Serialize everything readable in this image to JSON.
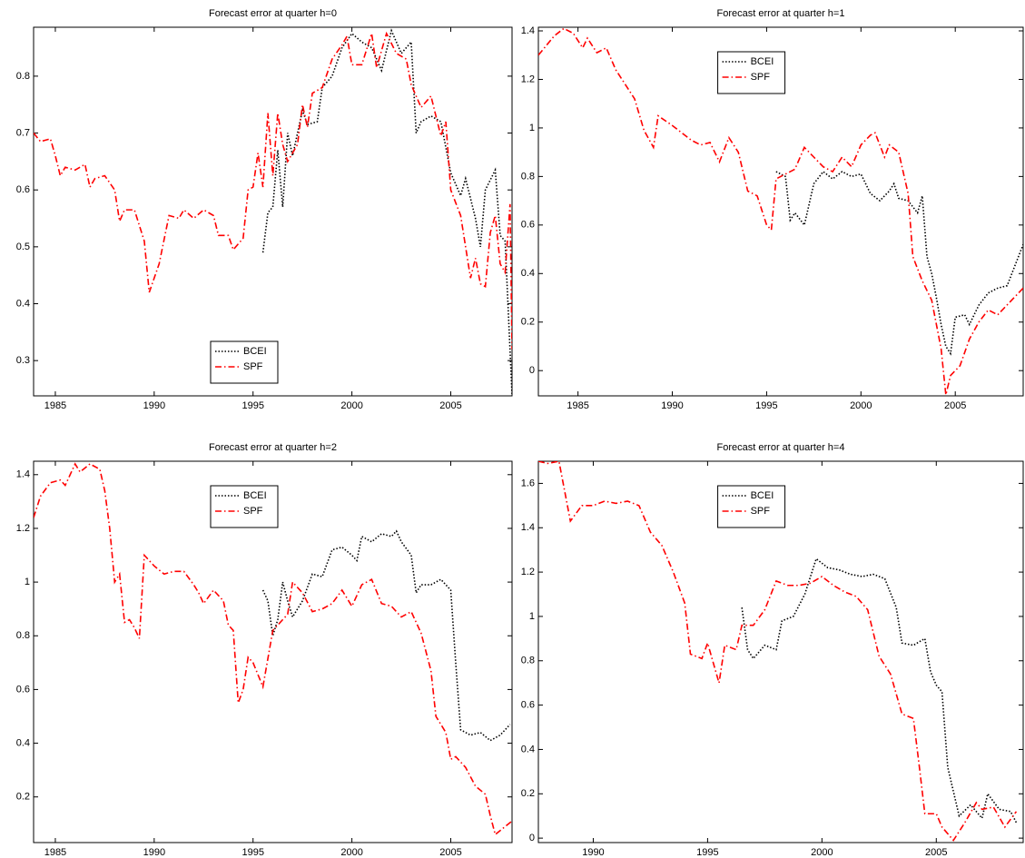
{
  "chart_data": [
    {
      "type": "line",
      "title": "Forecast error at quarter h=0",
      "legend": "lower center",
      "xlim": [
        1983.9,
        2008.1
      ],
      "xticks": [
        1985,
        1990,
        1995,
        2000,
        2005
      ],
      "ylim": [
        0.238,
        0.886
      ],
      "yticks": [
        0.3,
        0.4,
        0.5,
        0.6,
        0.7,
        0.8
      ],
      "series": [
        {
          "name": "BCEI",
          "color": "#000000",
          "linestyle": "dotted",
          "x": [
            1995.5,
            1995.75,
            1996,
            1996.25,
            1996.5,
            1996.75,
            1997,
            1997.5,
            1997.75,
            1998.25,
            1998.5,
            1999,
            1999.5,
            2000,
            2000.5,
            2001,
            2001.5,
            2002,
            2002.5,
            2003,
            2003.25,
            2003.5,
            2004,
            2004.5,
            2005,
            2005.5,
            2005.75,
            2006.25,
            2006.5,
            2006.75,
            2007.25,
            2007.5,
            2007.75,
            2008.1
          ],
          "values": [
            0.49,
            0.56,
            0.57,
            0.67,
            0.57,
            0.7,
            0.66,
            0.74,
            0.715,
            0.72,
            0.78,
            0.8,
            0.85,
            0.875,
            0.86,
            0.85,
            0.81,
            0.88,
            0.84,
            0.86,
            0.7,
            0.72,
            0.73,
            0.72,
            0.63,
            0.59,
            0.62,
            0.55,
            0.5,
            0.6,
            0.635,
            0.52,
            0.51,
            0.24
          ]
        },
        {
          "name": "SPF",
          "color": "#ff0000",
          "linestyle": "dashdot",
          "x": [
            1983.9,
            1984.25,
            1984.75,
            1985.0,
            1985.25,
            1985.5,
            1986,
            1986.5,
            1986.75,
            1987,
            1987.5,
            1988,
            1988.25,
            1988.5,
            1989,
            1989.5,
            1989.75,
            1990.25,
            1990.75,
            1991.25,
            1991.5,
            1992,
            1992.5,
            1993,
            1993.25,
            1993.75,
            1994,
            1994.5,
            1994.75,
            1995,
            1995.25,
            1995.5,
            1995.75,
            1996,
            1996.25,
            1996.5,
            1996.75,
            1997.25,
            1997.5,
            1997.75,
            1998,
            1998.5,
            1999,
            1999.5,
            1999.75,
            2000,
            2000.5,
            2001,
            2001.25,
            2001.75,
            2002.25,
            2002.75,
            2003,
            2003.5,
            2004,
            2004.5,
            2004.75,
            2005,
            2005.5,
            2006,
            2006.25,
            2006.5,
            2006.75,
            2007,
            2007.25,
            2007.5,
            2007.75,
            2008,
            2008.1
          ],
          "values": [
            0.7,
            0.685,
            0.69,
            0.66,
            0.625,
            0.64,
            0.635,
            0.645,
            0.605,
            0.62,
            0.625,
            0.6,
            0.545,
            0.565,
            0.565,
            0.51,
            0.42,
            0.47,
            0.555,
            0.55,
            0.565,
            0.55,
            0.565,
            0.555,
            0.52,
            0.52,
            0.495,
            0.515,
            0.6,
            0.605,
            0.665,
            0.605,
            0.735,
            0.625,
            0.735,
            0.68,
            0.65,
            0.68,
            0.75,
            0.71,
            0.77,
            0.78,
            0.83,
            0.855,
            0.87,
            0.82,
            0.82,
            0.875,
            0.815,
            0.875,
            0.84,
            0.83,
            0.785,
            0.745,
            0.765,
            0.695,
            0.72,
            0.6,
            0.555,
            0.445,
            0.48,
            0.435,
            0.43,
            0.525,
            0.555,
            0.47,
            0.455,
            0.575,
            0.32
          ]
        }
      ]
    },
    {
      "type": "line",
      "title": "Forecast error at quarter h=1",
      "legend": "upper center",
      "xlim": [
        1982.9,
        2008.6
      ],
      "xticks": [
        1985,
        1990,
        1995,
        2000,
        2005
      ],
      "ylim": [
        -0.104,
        1.415
      ],
      "yticks": [
        0,
        0.2,
        0.4,
        0.6,
        0.8,
        1,
        1.2,
        1.4
      ],
      "series": [
        {
          "name": "BCEI",
          "color": "#000000",
          "linestyle": "dotted",
          "x": [
            1995.5,
            1996,
            1996.25,
            1996.5,
            1997,
            1997.5,
            1998,
            1998.5,
            1999,
            1999.5,
            2000,
            2000.5,
            2001,
            2001.5,
            2001.75,
            2002,
            2002.5,
            2003,
            2003.25,
            2003.5,
            2003.75,
            2004,
            2004.25,
            2004.5,
            2004.75,
            2005,
            2005.5,
            2005.75,
            2006.25,
            2006.75,
            2007.25,
            2007.75,
            2008.6
          ],
          "values": [
            0.82,
            0.8,
            0.62,
            0.65,
            0.6,
            0.77,
            0.82,
            0.79,
            0.82,
            0.8,
            0.81,
            0.73,
            0.7,
            0.74,
            0.77,
            0.71,
            0.7,
            0.65,
            0.72,
            0.47,
            0.4,
            0.3,
            0.19,
            0.1,
            0.07,
            0.22,
            0.23,
            0.19,
            0.27,
            0.32,
            0.34,
            0.35,
            0.52
          ]
        },
        {
          "name": "SPF",
          "color": "#ff0000",
          "linestyle": "dashdot",
          "x": [
            1982.9,
            1983.75,
            1984.25,
            1984.75,
            1985.25,
            1985.5,
            1986,
            1986.5,
            1987,
            1987.5,
            1988,
            1988.5,
            1989,
            1989.25,
            1990,
            1990.5,
            1991,
            1991.5,
            1992,
            1992.5,
            1993,
            1993.5,
            1994,
            1994.5,
            1995,
            1995.25,
            1995.5,
            1996,
            1996.5,
            1997,
            1997.5,
            1998,
            1998.5,
            1999,
            1999.5,
            2000,
            2000.5,
            2000.75,
            2001.25,
            2001.5,
            2002,
            2002.5,
            2002.75,
            2003.25,
            2003.75,
            2004.25,
            2004.5,
            2004.75,
            2005.25,
            2005.75,
            2006.25,
            2006.75,
            2007.25,
            2008.6
          ],
          "values": [
            1.3,
            1.38,
            1.41,
            1.39,
            1.33,
            1.37,
            1.31,
            1.33,
            1.24,
            1.18,
            1.12,
            0.99,
            0.92,
            1.05,
            1.01,
            0.98,
            0.95,
            0.93,
            0.94,
            0.86,
            0.96,
            0.9,
            0.74,
            0.72,
            0.6,
            0.58,
            0.79,
            0.81,
            0.83,
            0.92,
            0.88,
            0.84,
            0.82,
            0.88,
            0.84,
            0.93,
            0.97,
            0.98,
            0.88,
            0.93,
            0.9,
            0.73,
            0.47,
            0.37,
            0.29,
            0.09,
            -0.1,
            -0.02,
            0.02,
            0.13,
            0.2,
            0.25,
            0.23,
            0.34
          ]
        }
      ]
    },
    {
      "type": "line",
      "title": "Forecast error at quarter h=2",
      "legend": "upper center",
      "xlim": [
        1983.9,
        2008.1
      ],
      "xticks": [
        1985,
        1990,
        1995,
        2000,
        2005
      ],
      "ylim": [
        0.03,
        1.45
      ],
      "yticks": [
        0.2,
        0.4,
        0.6,
        0.8,
        1,
        1.2,
        1.4
      ],
      "series": [
        {
          "name": "BCEI",
          "color": "#000000",
          "linestyle": "dotted",
          "x": [
            1995.5,
            1995.75,
            1996,
            1996.25,
            1996.5,
            1996.75,
            1997,
            1997.5,
            1998,
            1998.5,
            1999,
            1999.5,
            2000,
            2000.25,
            2000.5,
            2001,
            2001.5,
            2002,
            2002.25,
            2002.5,
            2003,
            2003.25,
            2003.5,
            2004,
            2004.5,
            2005,
            2005.25,
            2005.5,
            2006,
            2006.5,
            2007,
            2007.5,
            2008
          ],
          "values": [
            0.97,
            0.93,
            0.8,
            0.86,
            1.0,
            0.93,
            0.87,
            0.93,
            1.03,
            1.02,
            1.12,
            1.13,
            1.1,
            1.08,
            1.17,
            1.15,
            1.18,
            1.17,
            1.19,
            1.15,
            1.1,
            0.96,
            0.99,
            0.99,
            1.01,
            0.97,
            0.7,
            0.45,
            0.43,
            0.44,
            0.41,
            0.43,
            0.47
          ]
        },
        {
          "name": "SPF",
          "color": "#ff0000",
          "linestyle": "dashdot",
          "x": [
            1983.9,
            1984.25,
            1984.75,
            1985.25,
            1985.5,
            1986,
            1986.25,
            1986.75,
            1987.25,
            1987.5,
            1987.75,
            1988,
            1988.25,
            1988.5,
            1988.75,
            1989,
            1989.25,
            1989.5,
            1990,
            1990.5,
            1991,
            1991.5,
            1992,
            1992.25,
            1992.5,
            1993,
            1993.5,
            1993.75,
            1994,
            1994.25,
            1994.5,
            1994.75,
            1995,
            1995.5,
            1996,
            1996.5,
            1996.75,
            1997,
            1997.5,
            1998,
            1998.5,
            1999,
            1999.5,
            2000,
            2000.5,
            2001,
            2001.5,
            2002,
            2002.5,
            2003,
            2003.5,
            2004,
            2004.25,
            2004.75,
            2005,
            2005.25,
            2005.75,
            2006.25,
            2006.75,
            2007,
            2007.25,
            2008.1
          ],
          "values": [
            1.24,
            1.32,
            1.37,
            1.38,
            1.36,
            1.44,
            1.41,
            1.44,
            1.42,
            1.34,
            1.2,
            1.0,
            1.03,
            0.85,
            0.86,
            0.83,
            0.79,
            1.1,
            1.06,
            1.03,
            1.04,
            1.04,
            0.99,
            0.96,
            0.92,
            0.97,
            0.93,
            0.84,
            0.82,
            0.55,
            0.6,
            0.72,
            0.7,
            0.61,
            0.82,
            0.86,
            0.88,
            1.0,
            0.96,
            0.89,
            0.9,
            0.92,
            0.97,
            0.91,
            0.99,
            1.01,
            0.92,
            0.91,
            0.87,
            0.89,
            0.81,
            0.67,
            0.5,
            0.44,
            0.34,
            0.35,
            0.31,
            0.24,
            0.21,
            0.13,
            0.06,
            0.11
          ]
        }
      ]
    },
    {
      "type": "line",
      "title": "Forecast error at quarter h=4",
      "legend": "upper center",
      "xlim": [
        1987.6,
        2008.8
      ],
      "xticks": [
        1990,
        1995,
        2000,
        2005
      ],
      "ylim": [
        -0.02,
        1.7
      ],
      "yticks": [
        0,
        0.2,
        0.4,
        0.6,
        0.8,
        1,
        1.2,
        1.4,
        1.6
      ],
      "series": [
        {
          "name": "BCEI",
          "color": "#000000",
          "linestyle": "dotted",
          "x": [
            1996.5,
            1996.75,
            1997,
            1997.5,
            1998,
            1998.25,
            1998.75,
            1999.25,
            1999.75,
            2000.25,
            2000.75,
            2001.25,
            2001.75,
            2002.25,
            2002.75,
            2003.25,
            2003.5,
            2004,
            2004.5,
            2004.75,
            2005,
            2005.25,
            2005.5,
            2006,
            2006.5,
            2007,
            2007.25,
            2007.75,
            2008.25,
            2008.5
          ],
          "values": [
            1.04,
            0.85,
            0.81,
            0.87,
            0.85,
            0.98,
            1.0,
            1.1,
            1.26,
            1.22,
            1.21,
            1.19,
            1.18,
            1.19,
            1.17,
            1.04,
            0.88,
            0.87,
            0.9,
            0.75,
            0.69,
            0.66,
            0.32,
            0.1,
            0.15,
            0.09,
            0.2,
            0.13,
            0.12,
            0.07
          ]
        },
        {
          "name": "SPF",
          "color": "#ff0000",
          "linestyle": "dashdot",
          "x": [
            1987.6,
            1988,
            1988.5,
            1989,
            1989.5,
            1990,
            1990.5,
            1991,
            1991.5,
            1992,
            1992.5,
            1993,
            1993.5,
            1994,
            1994.25,
            1994.75,
            1995,
            1995.5,
            1995.75,
            1996.25,
            1996.5,
            1997,
            1997.5,
            1998,
            1998.5,
            1999,
            1999.5,
            2000,
            2000.5,
            2001,
            2001.5,
            2002,
            2002.5,
            2003,
            2003.5,
            2004,
            2004.25,
            2004.5,
            2005,
            2005.25,
            2005.75,
            2006.25,
            2006.75,
            2007,
            2007.5,
            2008,
            2008.5
          ],
          "values": [
            1.7,
            1.69,
            1.7,
            1.43,
            1.5,
            1.5,
            1.52,
            1.51,
            1.52,
            1.5,
            1.38,
            1.32,
            1.2,
            1.06,
            0.83,
            0.81,
            0.88,
            0.7,
            0.87,
            0.85,
            0.96,
            0.96,
            1.03,
            1.16,
            1.14,
            1.14,
            1.15,
            1.18,
            1.14,
            1.11,
            1.09,
            1.03,
            0.82,
            0.74,
            0.56,
            0.54,
            0.33,
            0.11,
            0.11,
            0.05,
            -0.01,
            0.07,
            0.16,
            0.13,
            0.14,
            0.05,
            0.12
          ]
        }
      ]
    }
  ]
}
